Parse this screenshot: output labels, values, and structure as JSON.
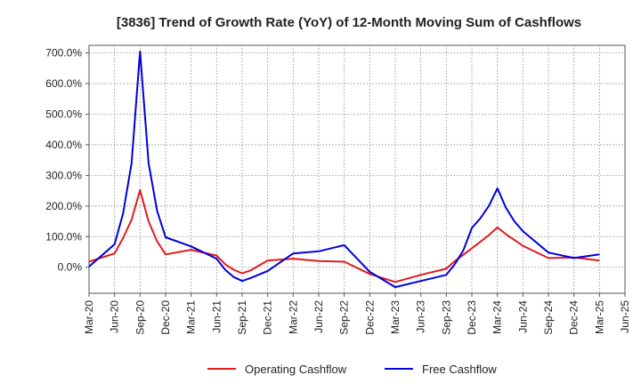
{
  "chart_data": {
    "type": "line",
    "title": "[3836]  Trend of Growth Rate (YoY) of 12-Month Moving Sum of Cashflows",
    "xlabel": "",
    "ylabel": "",
    "x_ticks": [
      "Mar-20",
      "Jun-20",
      "Sep-20",
      "Dec-20",
      "Mar-21",
      "Jun-21",
      "Sep-21",
      "Dec-21",
      "Mar-22",
      "Jun-22",
      "Sep-22",
      "Dec-22",
      "Mar-23",
      "Jun-23",
      "Sep-23",
      "Dec-23",
      "Mar-24",
      "Jun-24",
      "Sep-24",
      "Dec-24",
      "Mar-25",
      "Jun-25"
    ],
    "y_ticks": [
      "0.0%",
      "100.0%",
      "200.0%",
      "300.0%",
      "400.0%",
      "500.0%",
      "600.0%",
      "700.0%"
    ],
    "ylim": [
      -85,
      725
    ],
    "grid": true,
    "legend_position": "bottom",
    "series": [
      {
        "name": "Operating Cashflow",
        "color": "#e31a1c",
        "x": [
          "Mar-20",
          "Jun-20",
          "Jul-20",
          "Aug-20",
          "Sep-20",
          "Oct-20",
          "Nov-20",
          "Dec-20",
          "Mar-21",
          "Jun-21",
          "Jul-21",
          "Aug-21",
          "Sep-21",
          "Oct-21",
          "Dec-21",
          "Mar-22",
          "Jun-22",
          "Sep-22",
          "Dec-22",
          "Mar-23",
          "Jun-23",
          "Sep-23",
          "Oct-23",
          "Dec-23",
          "Jan-24",
          "Feb-24",
          "Mar-24",
          "Apr-24",
          "Jun-24",
          "Sep-24",
          "Dec-24",
          "Mar-25"
        ],
        "values": [
          18,
          45,
          95,
          155,
          252,
          150,
          85,
          42,
          57,
          38,
          10,
          -8,
          -20,
          -10,
          22,
          28,
          20,
          18,
          -22,
          -48,
          -25,
          -5,
          20,
          62,
          83,
          105,
          130,
          108,
          70,
          30,
          32,
          22
        ]
      },
      {
        "name": "Free Cashflow",
        "color": "#0000dd",
        "x": [
          "Mar-20",
          "Jun-20",
          "Jul-20",
          "Aug-20",
          "Sep-20",
          "Oct-20",
          "Nov-20",
          "Dec-20",
          "Mar-21",
          "Jun-21",
          "Jul-21",
          "Aug-21",
          "Sep-21",
          "Oct-21",
          "Dec-21",
          "Mar-22",
          "Jun-22",
          "Sep-22",
          "Dec-22",
          "Mar-23",
          "Jun-23",
          "Sep-23",
          "Oct-23",
          "Nov-23",
          "Dec-23",
          "Jan-24",
          "Feb-24",
          "Mar-24",
          "Apr-24",
          "May-24",
          "Jun-24",
          "Sep-24",
          "Dec-24",
          "Mar-25"
        ],
        "values": [
          2,
          75,
          175,
          340,
          705,
          340,
          185,
          98,
          68,
          28,
          -8,
          -32,
          -45,
          -35,
          -12,
          45,
          52,
          72,
          -15,
          -65,
          -45,
          -25,
          10,
          55,
          128,
          160,
          200,
          258,
          195,
          150,
          118,
          48,
          30,
          42
        ]
      }
    ]
  }
}
